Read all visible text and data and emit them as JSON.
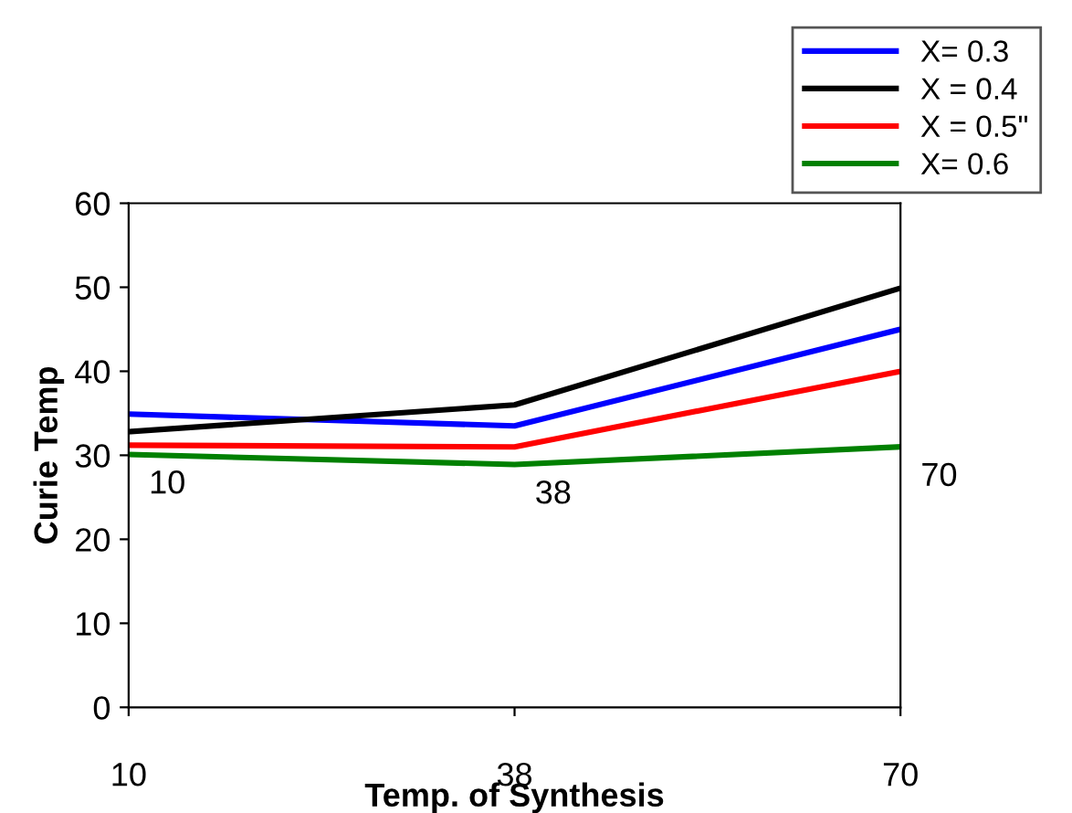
{
  "chart_data": {
    "type": "line",
    "xlabel": "Temp. of Synthesis",
    "ylabel": "Curie Temp",
    "categories": [
      "10",
      "38",
      "70"
    ],
    "series": [
      {
        "name": "X= 0.3",
        "color": "#0000ff",
        "values": [
          34.9,
          33.5,
          45
        ]
      },
      {
        "name": "X = 0.4",
        "color": "#000000",
        "values": [
          32.8,
          36,
          49.9
        ]
      },
      {
        "name": "X = 0.5\"",
        "color": "#ff0000",
        "values": [
          31.2,
          31,
          40
        ]
      },
      {
        "name": "X= 0.6",
        "color": "#008000",
        "values": [
          30.1,
          28.9,
          31
        ]
      }
    ],
    "annotations": [
      {
        "text": "10",
        "x": "10",
        "y": 30.1
      },
      {
        "text": "38",
        "x": "38",
        "y": 28.9
      },
      {
        "text": "70",
        "x": "70",
        "y": 31
      }
    ],
    "ylim": [
      0,
      60
    ],
    "yticks": [
      0,
      10,
      20,
      30,
      40,
      50,
      60
    ],
    "grid": false,
    "legend": "top right",
    "marker": "none",
    "line_style": "solid"
  }
}
